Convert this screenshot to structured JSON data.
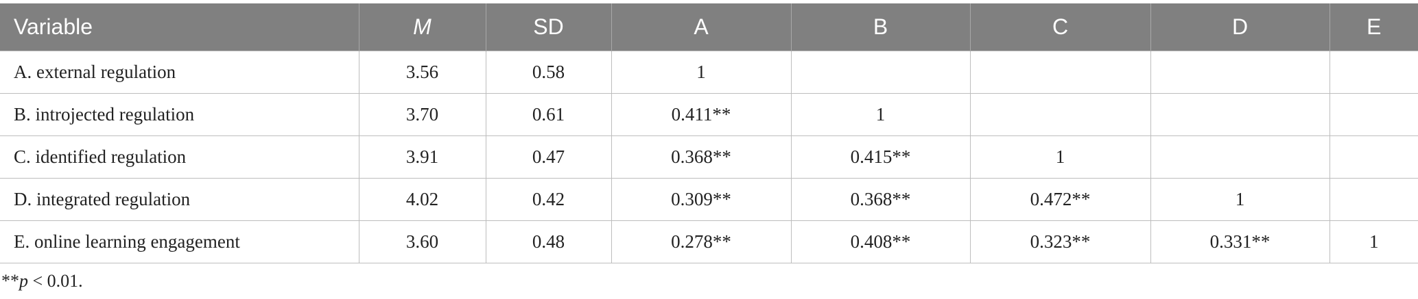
{
  "table": {
    "header": [
      "Variable",
      "M",
      "SD",
      "A",
      "B",
      "C",
      "D",
      "E"
    ],
    "rows": [
      [
        "A. external regulation",
        "3.56",
        "0.58",
        "1"
      ],
      [
        "B. introjected regulation",
        "3.70",
        "0.61",
        "0.411**",
        "1"
      ],
      [
        "C. identified regulation",
        "3.91",
        "0.47",
        "0.368**",
        "0.415**",
        "1"
      ],
      [
        "D. integrated regulation",
        "4.02",
        "0.42",
        "0.309**",
        "0.368**",
        "0.472**",
        "1"
      ],
      [
        "E. online learning engagement",
        "3.60",
        "0.48",
        "0.278**",
        "0.408**",
        "0.323**",
        "0.331**",
        "1"
      ]
    ]
  },
  "footnote": [
    "**",
    "p",
    " < 0.01."
  ]
}
